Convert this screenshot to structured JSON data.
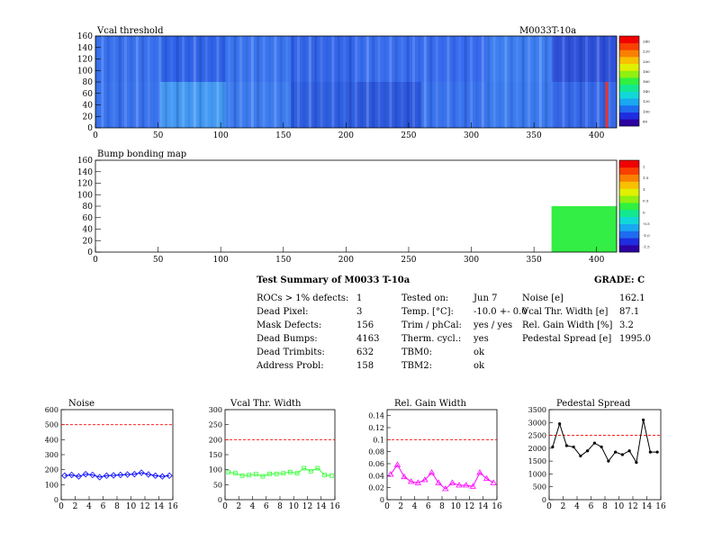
{
  "header": {
    "module_id": "M0033T-10a"
  },
  "vcal_map": {
    "title": "Vcal threshold",
    "x_ticks": [
      0,
      50,
      100,
      150,
      200,
      250,
      300,
      350,
      400
    ],
    "y_ticks": [
      0,
      20,
      40,
      60,
      80,
      100,
      120,
      140,
      160
    ],
    "palette_labels": [
      "80",
      "100",
      "120",
      "140",
      "160",
      "180",
      "200",
      "220",
      "240"
    ]
  },
  "bump_map": {
    "title": "Bump bonding map",
    "x_ticks": [
      0,
      50,
      100,
      150,
      200,
      250,
      300,
      350,
      400
    ],
    "y_ticks": [
      0,
      20,
      40,
      60,
      80,
      100,
      120,
      140,
      160
    ],
    "palette_labels": [
      "-1.5",
      "-1.0",
      "-0.5",
      "0",
      "0.5",
      "1",
      "1.5",
      "2"
    ]
  },
  "summary": {
    "title": "Test Summary of M0033    T-10a",
    "grade": "GRADE:  C",
    "col1": [
      {
        "label": "ROCs > 1% defects:",
        "value": "1"
      },
      {
        "label": "Dead Pixel:",
        "value": "3"
      },
      {
        "label": "Mask Defects:",
        "value": "156"
      },
      {
        "label": "Dead Bumps:",
        "value": "4163"
      },
      {
        "label": "Dead Trimbits:",
        "value": "632"
      },
      {
        "label": "Address Probl:",
        "value": "158"
      }
    ],
    "col2": [
      {
        "label": "Tested on:",
        "value": "Jun 7"
      },
      {
        "label": "Temp. [°C]:",
        "value": "-10.0 +- 0.0"
      },
      {
        "label": "Trim / phCal:",
        "value": "yes / yes"
      },
      {
        "label": "Therm. cycl.:",
        "value": "yes"
      },
      {
        "label": "TBM0:",
        "value": "ok"
      },
      {
        "label": "TBM2:",
        "value": "ok"
      }
    ],
    "col3": [
      {
        "label": "Noise [e]",
        "value": "162.1"
      },
      {
        "label": "Vcal Thr. Width [e]",
        "value": "87.1"
      },
      {
        "label": "Rel. Gain Width [%]",
        "value": "3.2"
      },
      {
        "label": "Pedestal Spread [e]",
        "value": "1995.0"
      }
    ]
  },
  "colors": {
    "noise": "#0000ff",
    "vcal": "#33ff33",
    "gain": "#ff00ff",
    "pedestal": "#000000",
    "threshold": "#ff0000"
  },
  "chart_data": [
    {
      "type": "line",
      "title": "Noise",
      "x": [
        0,
        1,
        2,
        3,
        4,
        5,
        6,
        7,
        8,
        9,
        10,
        11,
        12,
        13,
        14,
        15
      ],
      "values": [
        160,
        165,
        155,
        170,
        165,
        150,
        160,
        162,
        165,
        168,
        170,
        180,
        168,
        160,
        155,
        160
      ],
      "xlim": [
        0,
        16
      ],
      "ylim": [
        0,
        600
      ],
      "threshold": 500,
      "x_ticks": [
        0,
        2,
        4,
        6,
        8,
        10,
        12,
        14,
        16
      ],
      "y_ticks": [
        0,
        100,
        200,
        300,
        400,
        500,
        600
      ],
      "y_tick_labels": [
        "0",
        "100",
        "200",
        "300",
        "400",
        "500",
        "600"
      ]
    },
    {
      "type": "line",
      "title": "Vcal Thr. Width",
      "x": [
        0,
        1,
        2,
        3,
        4,
        5,
        6,
        7,
        8,
        9,
        10,
        11,
        12,
        13,
        14,
        15
      ],
      "values": [
        92,
        88,
        80,
        82,
        85,
        78,
        86,
        86,
        88,
        92,
        88,
        105,
        95,
        105,
        82,
        80
      ],
      "xlim": [
        0,
        16
      ],
      "ylim": [
        0,
        300
      ],
      "threshold": 200,
      "x_ticks": [
        0,
        2,
        4,
        6,
        8,
        10,
        12,
        14,
        16
      ],
      "y_ticks": [
        0,
        50,
        100,
        150,
        200,
        250,
        300
      ],
      "y_tick_labels": [
        "0",
        "50",
        "100",
        "150",
        "200",
        "250",
        "300"
      ]
    },
    {
      "type": "line",
      "title": "Rel. Gain Width",
      "x": [
        0,
        1,
        2,
        3,
        4,
        5,
        6,
        7,
        8,
        9,
        10,
        11,
        12,
        13,
        14,
        15
      ],
      "values": [
        0.042,
        0.058,
        0.038,
        0.03,
        0.028,
        0.033,
        0.045,
        0.028,
        0.018,
        0.028,
        0.024,
        0.024,
        0.022,
        0.045,
        0.035,
        0.028
      ],
      "xlim": [
        0,
        16
      ],
      "ylim": [
        0,
        0.15
      ],
      "threshold": 0.1,
      "x_ticks": [
        0,
        2,
        4,
        6,
        8,
        10,
        12,
        14,
        16
      ],
      "y_ticks": [
        0,
        0.02,
        0.04,
        0.06,
        0.08,
        0.1,
        0.12,
        0.14
      ],
      "y_tick_labels": [
        "0",
        "0.02",
        "0.04",
        "0.06",
        "0.08",
        "0.1",
        "0.12",
        "0.14"
      ]
    },
    {
      "type": "line",
      "title": "Pedestal Spread",
      "x": [
        0,
        1,
        2,
        3,
        4,
        5,
        6,
        7,
        8,
        9,
        10,
        11,
        12,
        13,
        14,
        15
      ],
      "values": [
        2050,
        2950,
        2100,
        2050,
        1700,
        1900,
        2200,
        2050,
        1500,
        1850,
        1750,
        1900,
        1450,
        3100,
        1850,
        1850
      ],
      "xlim": [
        0,
        16
      ],
      "ylim": [
        0,
        3500
      ],
      "threshold": 2500,
      "x_ticks": [
        0,
        2,
        4,
        6,
        8,
        10,
        12,
        14,
        16
      ],
      "y_ticks": [
        0,
        500,
        1000,
        1500,
        2000,
        2500,
        3000,
        3500
      ],
      "y_tick_labels": [
        "0",
        "500",
        "1000",
        "1500",
        "2000",
        "2500",
        "3000",
        "3500"
      ]
    }
  ]
}
